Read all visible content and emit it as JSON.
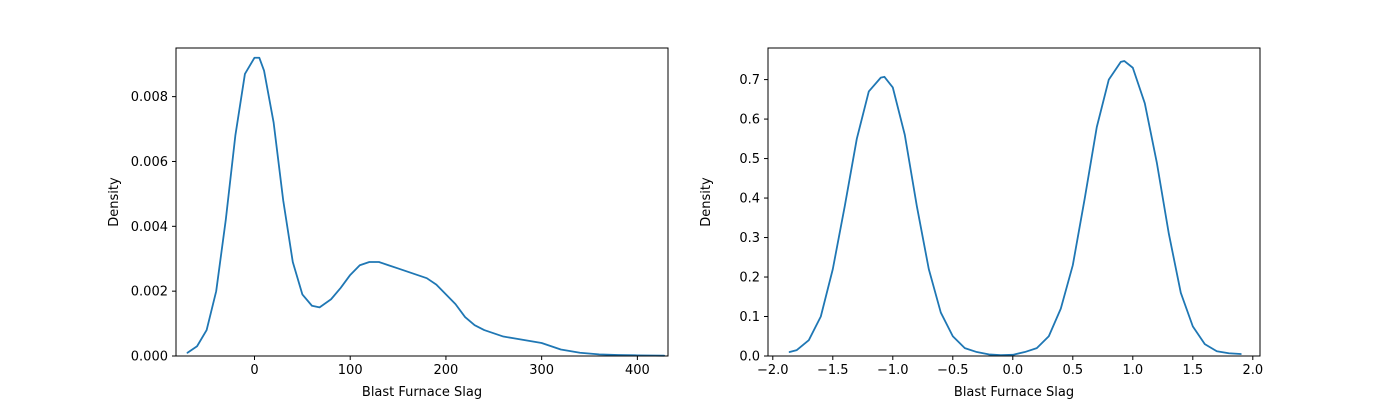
{
  "chart_data": [
    {
      "type": "line",
      "title": "",
      "xlabel": "Blast Furnace Slag",
      "ylabel": "Density",
      "xlim": [
        -82,
        432
      ],
      "ylim": [
        0,
        0.0095
      ],
      "xticks": [
        0,
        100,
        200,
        300,
        400
      ],
      "xtick_labels": [
        "0",
        "100",
        "200",
        "300",
        "400"
      ],
      "yticks": [
        0,
        0.002,
        0.004,
        0.006,
        0.008
      ],
      "ytick_labels": [
        "0.000",
        "0.002",
        "0.004",
        "0.006",
        "0.008"
      ],
      "grid": false,
      "legend": "none",
      "series": [
        {
          "color": "#1f77b4",
          "x": [
            -70,
            -60,
            -50,
            -40,
            -30,
            -20,
            -10,
            0,
            5,
            10,
            20,
            30,
            40,
            50,
            60,
            68,
            80,
            90,
            100,
            110,
            120,
            130,
            140,
            150,
            160,
            170,
            180,
            190,
            200,
            210,
            220,
            230,
            240,
            250,
            260,
            270,
            280,
            290,
            300,
            320,
            340,
            360,
            380,
            400,
            428
          ],
          "y": [
            0.0001,
            0.0003,
            0.0008,
            0.002,
            0.0042,
            0.0068,
            0.0087,
            0.0092,
            0.0092,
            0.0088,
            0.0072,
            0.0048,
            0.0029,
            0.0019,
            0.00155,
            0.0015,
            0.00175,
            0.0021,
            0.0025,
            0.0028,
            0.0029,
            0.0029,
            0.0028,
            0.0027,
            0.0026,
            0.0025,
            0.0024,
            0.0022,
            0.0019,
            0.0016,
            0.0012,
            0.00095,
            0.0008,
            0.0007,
            0.0006,
            0.00055,
            0.0005,
            0.00045,
            0.0004,
            0.0002,
            0.0001,
            5e-05,
            3e-05,
            2e-05,
            1e-05
          ]
        }
      ]
    },
    {
      "type": "line",
      "title": "",
      "xlabel": "Blast Furnace Slag",
      "ylabel": "Density",
      "xlim": [
        -2.04,
        2.06
      ],
      "ylim": [
        0,
        0.78
      ],
      "xticks": [
        -2.0,
        -1.5,
        -1.0,
        -0.5,
        0.0,
        0.5,
        1.0,
        1.5,
        2.0
      ],
      "xtick_labels": [
        "−2.0",
        "−1.5",
        "−1.0",
        "−0.5",
        "0.0",
        "0.5",
        "1.0",
        "1.5",
        "2.0"
      ],
      "yticks": [
        0,
        0.1,
        0.2,
        0.3,
        0.4,
        0.5,
        0.6,
        0.7
      ],
      "ytick_labels": [
        "0.0",
        "0.1",
        "0.2",
        "0.3",
        "0.4",
        "0.5",
        "0.6",
        "0.7"
      ],
      "grid": false,
      "legend": "none",
      "series": [
        {
          "color": "#1f77b4",
          "x": [
            -1.86,
            -1.8,
            -1.7,
            -1.6,
            -1.5,
            -1.4,
            -1.3,
            -1.2,
            -1.1,
            -1.07,
            -1.0,
            -0.9,
            -0.8,
            -0.7,
            -0.6,
            -0.5,
            -0.4,
            -0.3,
            -0.2,
            -0.1,
            0.0,
            0.1,
            0.2,
            0.3,
            0.4,
            0.5,
            0.6,
            0.7,
            0.8,
            0.9,
            0.93,
            1.0,
            1.1,
            1.2,
            1.3,
            1.4,
            1.5,
            1.6,
            1.7,
            1.8,
            1.9
          ],
          "y": [
            0.01,
            0.015,
            0.04,
            0.1,
            0.22,
            0.38,
            0.55,
            0.67,
            0.705,
            0.707,
            0.68,
            0.56,
            0.38,
            0.22,
            0.11,
            0.05,
            0.02,
            0.01,
            0.004,
            0.002,
            0.003,
            0.01,
            0.02,
            0.05,
            0.12,
            0.23,
            0.4,
            0.58,
            0.7,
            0.745,
            0.747,
            0.73,
            0.64,
            0.49,
            0.31,
            0.16,
            0.075,
            0.03,
            0.012,
            0.007,
            0.005
          ]
        }
      ]
    }
  ]
}
